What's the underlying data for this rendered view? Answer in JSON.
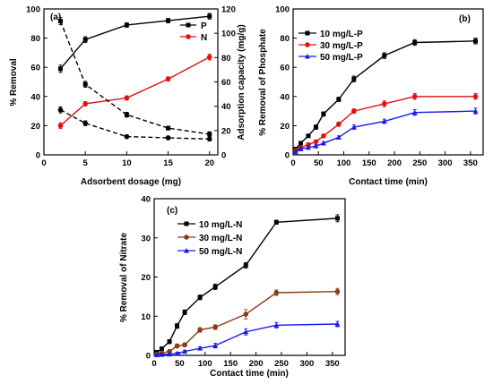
{
  "chart_data": [
    {
      "type": "line",
      "panel_label": "(a)",
      "xlabel": "Adsorbent dosage (mg)",
      "ylabel": "% Removal",
      "y2label": "Adsorption capacity (mg/g)",
      "xlim": [
        0,
        21
      ],
      "ylim": [
        0,
        100
      ],
      "y2lim": [
        0,
        120
      ],
      "xticks": [
        0,
        5,
        10,
        15,
        20
      ],
      "yticks": [
        0,
        20,
        40,
        60,
        80,
        100
      ],
      "y2ticks": [
        0,
        20,
        40,
        60,
        80,
        100,
        120
      ],
      "legend_position": "top-right",
      "series": [
        {
          "name": "P",
          "axis": "left",
          "style": "solid",
          "color": "#000000",
          "marker": "square",
          "x": [
            2,
            5,
            10,
            15,
            20
          ],
          "y": [
            59,
            79,
            89,
            92,
            95
          ],
          "err": [
            2.5,
            2,
            1.5,
            1.5,
            2
          ]
        },
        {
          "name": "N",
          "axis": "left",
          "style": "solid",
          "color": "#e01010",
          "marker": "circle",
          "x": [
            2,
            5,
            10,
            15,
            20
          ],
          "y": [
            20,
            35,
            39,
            52,
            67
          ],
          "err": [
            2,
            1.5,
            1.5,
            1.5,
            2
          ]
        },
        {
          "name": "",
          "axis": "right",
          "style": "dashed",
          "color": "#000000",
          "marker": "square",
          "x": [
            2,
            5,
            10,
            15,
            20
          ],
          "y": [
            110,
            58,
            33,
            22,
            17
          ],
          "err": [
            3,
            2.5,
            2,
            1.5,
            2
          ]
        },
        {
          "name": "",
          "axis": "right",
          "style": "dashed",
          "color": "#000000",
          "marker": "circle",
          "x": [
            2,
            5,
            10,
            15,
            20
          ],
          "y": [
            37,
            26,
            15,
            14,
            13
          ],
          "err": [
            2.5,
            2,
            1.5,
            1.5,
            1.5
          ]
        }
      ]
    },
    {
      "type": "line",
      "panel_label": "(b)",
      "xlabel": "Contact time (min)",
      "ylabel": "% Removal of Phosphate",
      "xlim": [
        0,
        375
      ],
      "ylim": [
        0,
        100
      ],
      "xticks": [
        0,
        50,
        100,
        150,
        200,
        250,
        300,
        350
      ],
      "yticks": [
        0,
        20,
        40,
        60,
        80,
        100
      ],
      "legend_position": "top-left",
      "series": [
        {
          "name": "10 mg/L-P",
          "color": "#000000",
          "marker": "square",
          "x": [
            5,
            15,
            30,
            45,
            60,
            90,
            120,
            180,
            240,
            360
          ],
          "y": [
            4,
            8,
            13,
            19,
            28,
            38,
            52,
            68,
            77,
            78
          ],
          "err": [
            1,
            1,
            1,
            1.5,
            1.5,
            1.5,
            2,
            2,
            2,
            2
          ]
        },
        {
          "name": "30 mg/L-P",
          "color": "#e01010",
          "marker": "circle",
          "x": [
            5,
            15,
            30,
            45,
            60,
            90,
            120,
            180,
            240,
            360
          ],
          "y": [
            3,
            5,
            7,
            9,
            13,
            21,
            30,
            35,
            40,
            40
          ],
          "err": [
            1,
            1,
            1,
            1,
            1,
            1.5,
            1.5,
            2,
            2,
            2
          ]
        },
        {
          "name": "50 mg/L-P",
          "color": "#1a1aee",
          "marker": "triangle",
          "x": [
            5,
            15,
            30,
            45,
            60,
            90,
            120,
            180,
            240,
            360
          ],
          "y": [
            2,
            4,
            5,
            6,
            8,
            12,
            19,
            23,
            29,
            30
          ],
          "err": [
            1,
            1,
            1,
            1,
            1,
            1,
            1.5,
            1.5,
            2,
            2
          ]
        }
      ]
    },
    {
      "type": "line",
      "panel_label": "(c)",
      "xlabel": "Contact time (min)",
      "ylabel": "% Removal of Nitrate",
      "xlim": [
        0,
        375
      ],
      "ylim": [
        0,
        40
      ],
      "xticks": [
        0,
        50,
        100,
        150,
        200,
        250,
        300,
        350
      ],
      "yticks": [
        0,
        10,
        20,
        30,
        40
      ],
      "legend_position": "top-left",
      "series": [
        {
          "name": "10 mg/L-N",
          "color": "#000000",
          "marker": "square",
          "x": [
            5,
            15,
            30,
            45,
            60,
            90,
            120,
            180,
            240,
            360
          ],
          "y": [
            0.8,
            1.7,
            3.5,
            7.5,
            11,
            14.8,
            17.5,
            23,
            34,
            35
          ],
          "err": [
            0.4,
            0.4,
            0.5,
            0.6,
            0.6,
            0.6,
            0.7,
            0.7,
            0.5,
            0.9
          ]
        },
        {
          "name": "30 mg/L-N",
          "color": "#8b3a1a",
          "marker": "circle",
          "x": [
            5,
            15,
            30,
            45,
            60,
            90,
            120,
            180,
            240,
            360
          ],
          "y": [
            0.3,
            0.6,
            1,
            2.4,
            2.7,
            6.5,
            7.2,
            10.5,
            16,
            16.3
          ],
          "err": [
            0.3,
            0.3,
            0.4,
            0.5,
            0.5,
            0.6,
            0.6,
            1.2,
            0.7,
            0.8
          ]
        },
        {
          "name": "50 mg/L-N",
          "color": "#1a1aee",
          "marker": "triangle",
          "x": [
            5,
            15,
            30,
            45,
            60,
            90,
            120,
            180,
            240,
            360
          ],
          "y": [
            0.1,
            0.2,
            0.3,
            0.5,
            1,
            1.8,
            2.5,
            6,
            7.7,
            8
          ],
          "err": [
            0.2,
            0.2,
            0.2,
            0.3,
            0.3,
            0.4,
            0.6,
            0.8,
            0.7,
            0.7
          ]
        }
      ]
    }
  ]
}
